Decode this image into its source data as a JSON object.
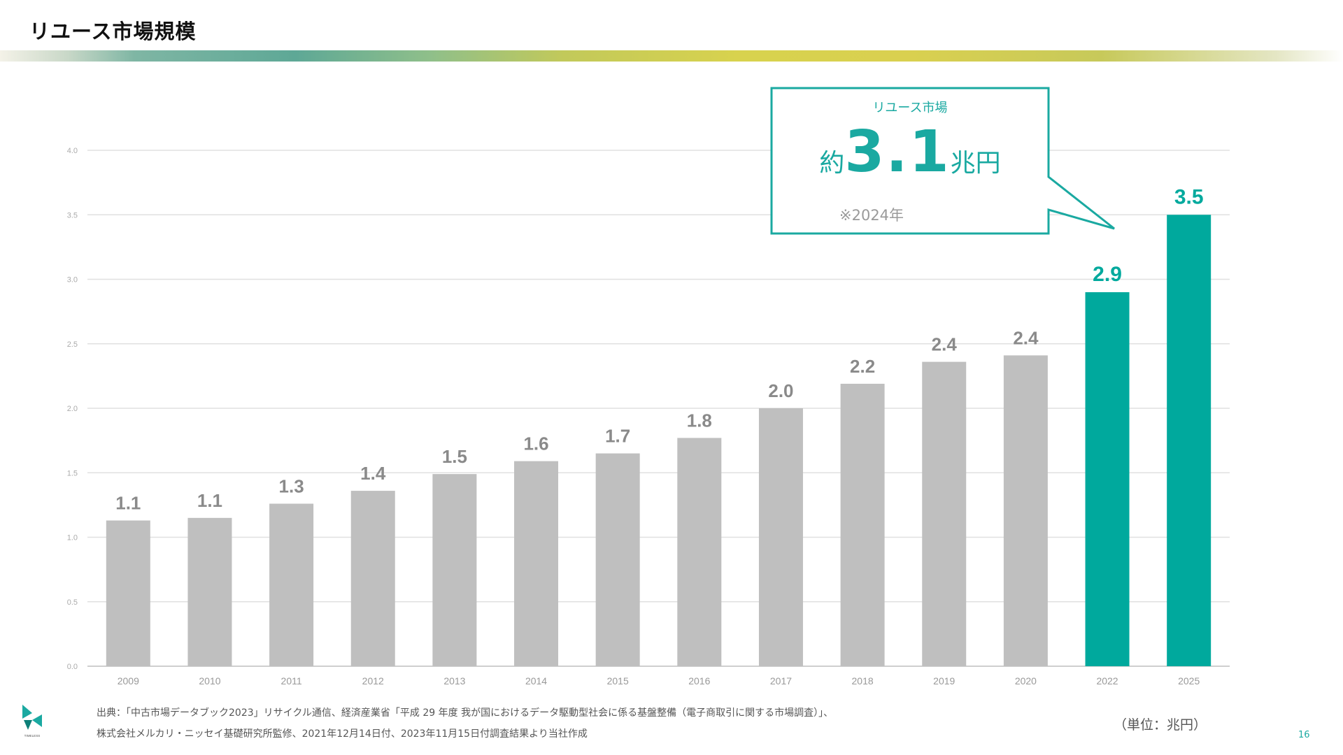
{
  "page": {
    "title": "リユース市場規模",
    "page_number": "16",
    "unit_label": "（単位：兆円）",
    "source_lines": [
      "出典：「中古市場データブック2023」リサイクル通信、経済産業省「平成 29 年度 我が国におけるデータ駆動型社会に係る基盤整備（電子商取引に関する市場調査）」、",
      "株式会社メルカリ・ニッセイ基礎研究所監修、2021年12月14日付、2023年11月15日付調査結果より当社作成"
    ],
    "logo_text": "TIMELESS"
  },
  "callout": {
    "title": "リユース市場",
    "prefix": "約",
    "value": "3.1",
    "suffix": "兆円",
    "note": "※2024年"
  },
  "colors": {
    "bar_default": "#bfbfbf",
    "bar_highlight": "#00a99d",
    "label_default": "#8a8a8a",
    "accent": "#1aa9a1"
  },
  "chart_data": {
    "type": "bar",
    "categories": [
      "2009",
      "2010",
      "2011",
      "2012",
      "2013",
      "2014",
      "2015",
      "2016",
      "2017",
      "2018",
      "2019",
      "2020",
      "2022",
      "2025"
    ],
    "values": [
      1.13,
      1.15,
      1.26,
      1.36,
      1.49,
      1.59,
      1.65,
      1.77,
      2.0,
      2.19,
      2.36,
      2.41,
      2.9,
      3.5
    ],
    "data_labels": [
      "1.1",
      "1.1",
      "1.3",
      "1.4",
      "1.5",
      "1.6",
      "1.7",
      "1.8",
      "2.0",
      "2.2",
      "2.4",
      "2.4",
      "2.9",
      "3.5"
    ],
    "highlighted": [
      "2022",
      "2025"
    ],
    "ylim": [
      0,
      4.0
    ],
    "yticks": [
      "0.0",
      "0.5",
      "1.0",
      "1.5",
      "2.0",
      "2.5",
      "3.0",
      "3.5",
      "4.0"
    ],
    "grid": true,
    "xlabel": "",
    "ylabel": "",
    "title": ""
  }
}
